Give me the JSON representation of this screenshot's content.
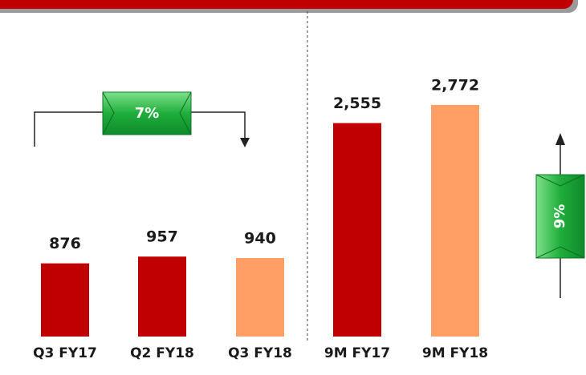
{
  "chart_data": {
    "type": "bar",
    "categories": [
      "Q3 FY17",
      "Q2 FY18",
      "Q3 FY18",
      "9M FY17",
      "9M FY18"
    ],
    "values": [
      876,
      957,
      940,
      2555,
      2772
    ],
    "value_labels": [
      "876",
      "957",
      "940",
      "2,555",
      "2,772"
    ],
    "colors": [
      "#c00000",
      "#c00000",
      "#ff9f66",
      "#c00000",
      "#ff9f66"
    ],
    "annotations": [
      "7%",
      "9%"
    ]
  }
}
